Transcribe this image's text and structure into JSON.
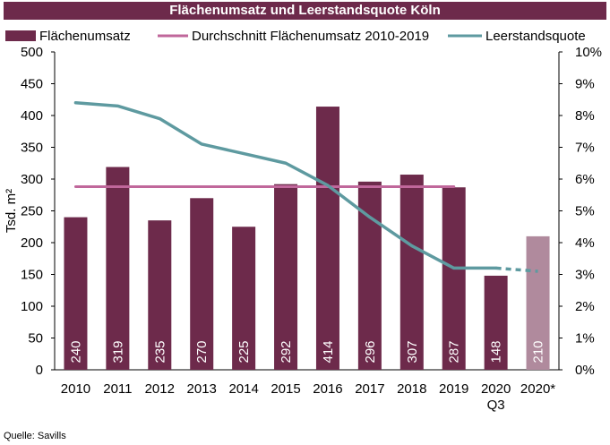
{
  "title": "Flächenumsatz und Leerstandsquote Köln",
  "source": "Quelle: Savills",
  "colors": {
    "title_bg": "#6d2a4b",
    "bar": "#6d2a4b",
    "bar_forecast": "#b08a9d",
    "average_line": "#c0679b",
    "vacancy_line": "#5e9aa0",
    "bar_label": "#ffffff",
    "axis_text": "#000000"
  },
  "chart_data": {
    "type": "bar",
    "categories": [
      "2010",
      "2011",
      "2012",
      "2013",
      "2014",
      "2015",
      "2016",
      "2017",
      "2018",
      "2019",
      "2020\nQ3",
      "2020*"
    ],
    "ylabel": "Tsd. m²",
    "ylim": [
      0,
      500
    ],
    "yticks": [
      0,
      50,
      100,
      150,
      200,
      250,
      300,
      350,
      400,
      450,
      500
    ],
    "y2lim": [
      0,
      10
    ],
    "y2ticks": [
      "0%",
      "1%",
      "2%",
      "3%",
      "4%",
      "5%",
      "6%",
      "7%",
      "8%",
      "9%",
      "10%"
    ],
    "legend_position": "top",
    "grid": false,
    "series": [
      {
        "name": "Flächenumsatz",
        "kind": "bar",
        "axis": "left",
        "values": [
          240,
          319,
          235,
          270,
          225,
          292,
          414,
          296,
          307,
          287,
          148,
          210
        ],
        "labels": [
          "240",
          "319",
          "235",
          "270",
          "225",
          "292",
          "414",
          "296",
          "307",
          "287",
          "148",
          "210"
        ],
        "forecast_index": 11
      },
      {
        "name": "Durchschnitt Flächenumsatz 2010-2019",
        "kind": "line",
        "axis": "left",
        "x_range": [
          0,
          9
        ],
        "value": 288
      },
      {
        "name": "Leerstandsquote",
        "kind": "line",
        "axis": "right",
        "values": [
          8.4,
          8.3,
          7.9,
          7.1,
          6.8,
          6.5,
          5.8,
          4.8,
          3.9,
          3.2,
          3.2,
          3.1
        ],
        "dashed_from_index": 10
      }
    ]
  }
}
